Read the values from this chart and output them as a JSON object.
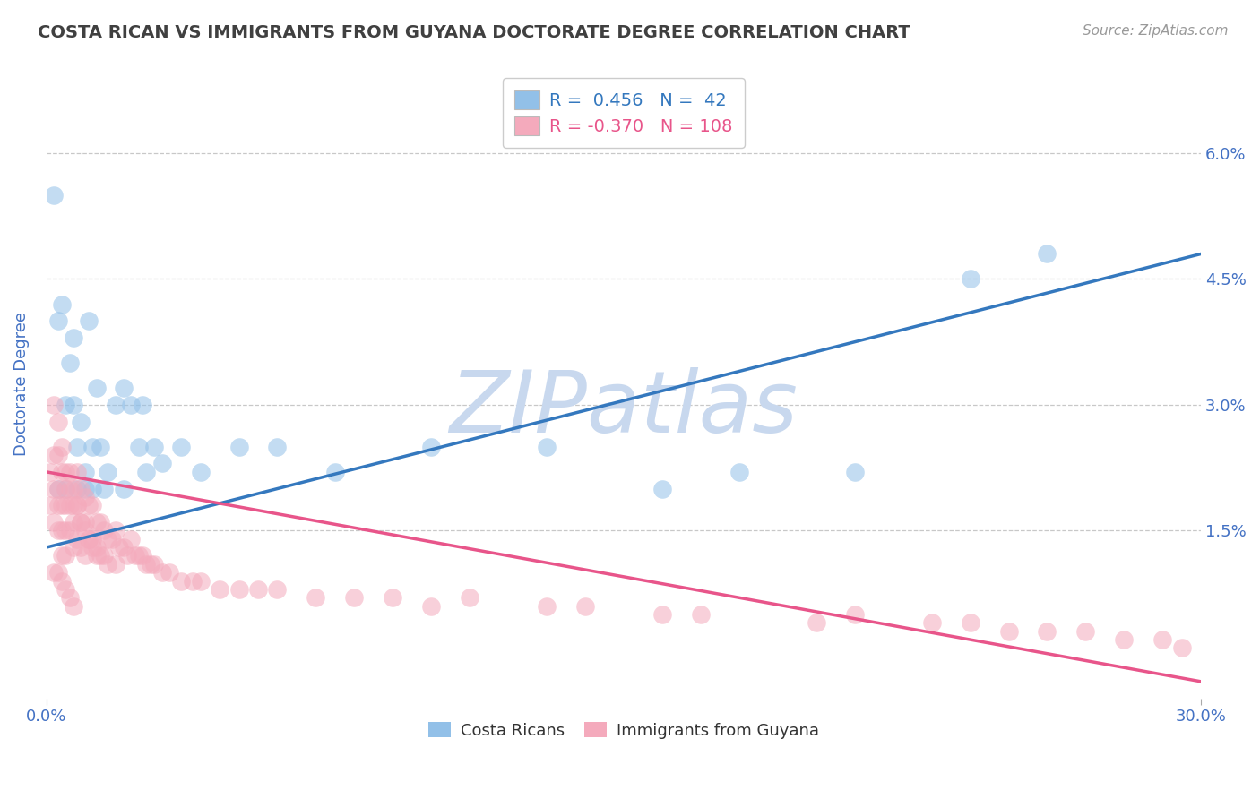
{
  "title": "COSTA RICAN VS IMMIGRANTS FROM GUYANA DOCTORATE DEGREE CORRELATION CHART",
  "source_text": "Source: ZipAtlas.com",
  "ylabel": "Doctorate Degree",
  "ytick_labels": [
    "1.5%",
    "3.0%",
    "4.5%",
    "6.0%"
  ],
  "ytick_values": [
    0.015,
    0.03,
    0.045,
    0.06
  ],
  "xlim": [
    0.0,
    0.3
  ],
  "ylim": [
    -0.005,
    0.07
  ],
  "legend_blue_r": "0.456",
  "legend_blue_n": "42",
  "legend_pink_r": "-0.370",
  "legend_pink_n": "108",
  "blue_color": "#92C0E8",
  "pink_color": "#F4AABC",
  "blue_line_color": "#3478BE",
  "pink_line_color": "#E8558A",
  "axis_color": "#4472C4",
  "title_color": "#404040",
  "watermark_color": "#C8D8EE",
  "background_color": "#FFFFFF",
  "grid_color": "#C8C8C8",
  "blue_scatter_x": [
    0.002,
    0.003,
    0.004,
    0.005,
    0.006,
    0.007,
    0.007,
    0.008,
    0.009,
    0.01,
    0.011,
    0.012,
    0.013,
    0.014,
    0.016,
    0.018,
    0.02,
    0.022,
    0.024,
    0.026,
    0.028,
    0.03,
    0.035,
    0.04,
    0.05,
    0.06,
    0.075,
    0.1,
    0.13,
    0.16,
    0.18,
    0.21,
    0.24,
    0.26,
    0.003,
    0.005,
    0.008,
    0.01,
    0.012,
    0.015,
    0.02,
    0.025
  ],
  "blue_scatter_y": [
    0.055,
    0.04,
    0.042,
    0.03,
    0.035,
    0.03,
    0.038,
    0.025,
    0.028,
    0.022,
    0.04,
    0.025,
    0.032,
    0.025,
    0.022,
    0.03,
    0.032,
    0.03,
    0.025,
    0.022,
    0.025,
    0.023,
    0.025,
    0.022,
    0.025,
    0.025,
    0.022,
    0.025,
    0.025,
    0.02,
    0.022,
    0.022,
    0.045,
    0.048,
    0.02,
    0.02,
    0.02,
    0.02,
    0.02,
    0.02,
    0.02,
    0.03
  ],
  "pink_scatter_x": [
    0.001,
    0.001,
    0.002,
    0.002,
    0.002,
    0.003,
    0.003,
    0.003,
    0.003,
    0.004,
    0.004,
    0.004,
    0.004,
    0.005,
    0.005,
    0.005,
    0.005,
    0.006,
    0.006,
    0.006,
    0.007,
    0.007,
    0.007,
    0.008,
    0.008,
    0.008,
    0.009,
    0.009,
    0.009,
    0.01,
    0.01,
    0.01,
    0.011,
    0.011,
    0.012,
    0.012,
    0.013,
    0.013,
    0.014,
    0.014,
    0.015,
    0.015,
    0.016,
    0.016,
    0.017,
    0.018,
    0.018,
    0.019,
    0.02,
    0.021,
    0.022,
    0.023,
    0.024,
    0.025,
    0.026,
    0.027,
    0.028,
    0.03,
    0.032,
    0.035,
    0.038,
    0.04,
    0.045,
    0.05,
    0.055,
    0.06,
    0.07,
    0.08,
    0.09,
    0.1,
    0.002,
    0.003,
    0.004,
    0.005,
    0.006,
    0.007,
    0.008,
    0.009,
    0.01,
    0.011,
    0.012,
    0.013,
    0.002,
    0.003,
    0.004,
    0.005,
    0.006,
    0.007,
    0.13,
    0.16,
    0.2,
    0.24,
    0.26,
    0.28,
    0.295,
    0.11,
    0.14,
    0.17,
    0.21,
    0.23,
    0.25,
    0.27,
    0.29
  ],
  "pink_scatter_y": [
    0.022,
    0.018,
    0.024,
    0.02,
    0.016,
    0.024,
    0.02,
    0.018,
    0.015,
    0.022,
    0.018,
    0.015,
    0.012,
    0.02,
    0.018,
    0.015,
    0.012,
    0.022,
    0.018,
    0.015,
    0.02,
    0.016,
    0.013,
    0.022,
    0.018,
    0.014,
    0.02,
    0.016,
    0.013,
    0.019,
    0.016,
    0.012,
    0.018,
    0.014,
    0.018,
    0.014,
    0.016,
    0.013,
    0.016,
    0.012,
    0.015,
    0.012,
    0.014,
    0.011,
    0.014,
    0.015,
    0.011,
    0.013,
    0.013,
    0.012,
    0.014,
    0.012,
    0.012,
    0.012,
    0.011,
    0.011,
    0.011,
    0.01,
    0.01,
    0.009,
    0.009,
    0.009,
    0.008,
    0.008,
    0.008,
    0.008,
    0.007,
    0.007,
    0.007,
    0.006,
    0.03,
    0.028,
    0.025,
    0.022,
    0.02,
    0.018,
    0.018,
    0.016,
    0.015,
    0.014,
    0.013,
    0.012,
    0.01,
    0.01,
    0.009,
    0.008,
    0.007,
    0.006,
    0.006,
    0.005,
    0.004,
    0.004,
    0.003,
    0.002,
    0.001,
    0.007,
    0.006,
    0.005,
    0.005,
    0.004,
    0.003,
    0.003,
    0.002
  ],
  "blue_trend_x": [
    0.0,
    0.3
  ],
  "blue_trend_y": [
    0.013,
    0.048
  ],
  "pink_trend_x": [
    0.0,
    0.3
  ],
  "pink_trend_y": [
    0.022,
    -0.003
  ]
}
